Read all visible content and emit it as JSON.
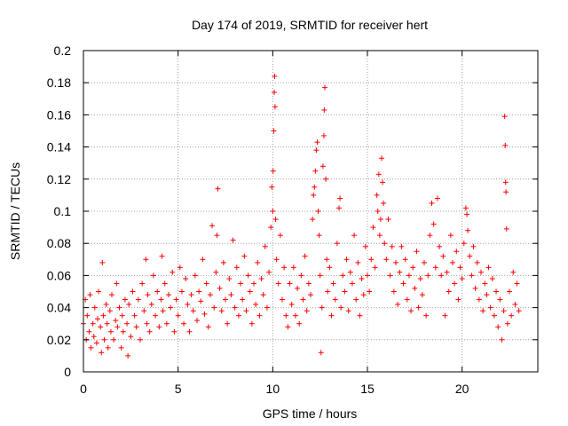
{
  "chart_data": {
    "type": "scatter",
    "title": "Day 174 of 2019, SRMTID for receiver hert",
    "xlabel": "GPS time / hours",
    "ylabel": "SRMTID / TECUs",
    "xlim": [
      0,
      24
    ],
    "ylim": [
      0,
      0.2
    ],
    "xticks": [
      0,
      5,
      10,
      15,
      20
    ],
    "xtick_labels": [
      "0",
      "5",
      "10",
      "15",
      "20"
    ],
    "yticks": [
      0,
      0.02,
      0.04,
      0.06,
      0.08,
      0.1,
      0.12,
      0.14,
      0.16,
      0.18,
      0.2
    ],
    "ytick_labels": [
      "0",
      "0.02",
      "0.04",
      "0.06",
      "0.08",
      "0.1",
      "0.12",
      "0.14",
      "0.16",
      "0.18",
      "0.2"
    ],
    "grid": true,
    "marker": "+",
    "color": "#ff0000",
    "series": [
      {
        "name": "SRMTID",
        "points": [
          [
            0.0,
            0.03
          ],
          [
            0.1,
            0.045
          ],
          [
            0.15,
            0.02
          ],
          [
            0.2,
            0.035
          ],
          [
            0.3,
            0.025
          ],
          [
            0.35,
            0.048
          ],
          [
            0.4,
            0.015
          ],
          [
            0.5,
            0.03
          ],
          [
            0.55,
            0.022
          ],
          [
            0.6,
            0.04
          ],
          [
            0.7,
            0.018
          ],
          [
            0.75,
            0.033
          ],
          [
            0.8,
            0.05
          ],
          [
            0.9,
            0.028
          ],
          [
            0.95,
            0.012
          ],
          [
            1.0,
            0.068
          ],
          [
            1.05,
            0.035
          ],
          [
            1.1,
            0.02
          ],
          [
            1.2,
            0.042
          ],
          [
            1.25,
            0.03
          ],
          [
            1.3,
            0.015
          ],
          [
            1.4,
            0.038
          ],
          [
            1.45,
            0.025
          ],
          [
            1.5,
            0.048
          ],
          [
            1.6,
            0.02
          ],
          [
            1.7,
            0.032
          ],
          [
            1.75,
            0.055
          ],
          [
            1.8,
            0.028
          ],
          [
            1.9,
            0.04
          ],
          [
            2.0,
            0.015
          ],
          [
            2.05,
            0.035
          ],
          [
            2.1,
            0.025
          ],
          [
            2.2,
            0.045
          ],
          [
            2.3,
            0.03
          ],
          [
            2.35,
            0.01
          ],
          [
            2.4,
            0.042
          ],
          [
            2.5,
            0.022
          ],
          [
            2.6,
            0.05
          ],
          [
            2.7,
            0.035
          ],
          [
            2.8,
            0.028
          ],
          [
            2.9,
            0.045
          ],
          [
            3.0,
            0.02
          ],
          [
            3.1,
            0.055
          ],
          [
            3.2,
            0.038
          ],
          [
            3.3,
            0.07
          ],
          [
            3.35,
            0.03
          ],
          [
            3.4,
            0.048
          ],
          [
            3.5,
            0.025
          ],
          [
            3.6,
            0.042
          ],
          [
            3.7,
            0.06
          ],
          [
            3.8,
            0.035
          ],
          [
            3.9,
            0.05
          ],
          [
            4.0,
            0.028
          ],
          [
            4.1,
            0.045
          ],
          [
            4.15,
            0.072
          ],
          [
            4.2,
            0.038
          ],
          [
            4.3,
            0.055
          ],
          [
            4.4,
            0.03
          ],
          [
            4.5,
            0.048
          ],
          [
            4.6,
            0.04
          ],
          [
            4.7,
            0.062
          ],
          [
            4.8,
            0.025
          ],
          [
            4.9,
            0.045
          ],
          [
            5.0,
            0.035
          ],
          [
            5.1,
            0.065
          ],
          [
            5.2,
            0.05
          ],
          [
            5.3,
            0.03
          ],
          [
            5.4,
            0.058
          ],
          [
            5.5,
            0.042
          ],
          [
            5.6,
            0.025
          ],
          [
            5.7,
            0.048
          ],
          [
            5.8,
            0.038
          ],
          [
            5.9,
            0.06
          ],
          [
            6.0,
            0.032
          ],
          [
            6.1,
            0.05
          ],
          [
            6.2,
            0.044
          ],
          [
            6.3,
            0.07
          ],
          [
            6.4,
            0.036
          ],
          [
            6.5,
            0.055
          ],
          [
            6.6,
            0.028
          ],
          [
            6.7,
            0.048
          ],
          [
            6.8,
            0.091
          ],
          [
            6.9,
            0.04
          ],
          [
            7.0,
            0.062
          ],
          [
            7.05,
            0.085
          ],
          [
            7.1,
            0.114
          ],
          [
            7.2,
            0.052
          ],
          [
            7.3,
            0.038
          ],
          [
            7.4,
            0.068
          ],
          [
            7.5,
            0.045
          ],
          [
            7.6,
            0.03
          ],
          [
            7.7,
            0.058
          ],
          [
            7.8,
            0.048
          ],
          [
            7.9,
            0.082
          ],
          [
            8.0,
            0.04
          ],
          [
            8.1,
            0.065
          ],
          [
            8.2,
            0.035
          ],
          [
            8.3,
            0.055
          ],
          [
            8.4,
            0.045
          ],
          [
            8.5,
            0.072
          ],
          [
            8.6,
            0.038
          ],
          [
            8.7,
            0.06
          ],
          [
            8.8,
            0.05
          ],
          [
            8.9,
            0.03
          ],
          [
            9.0,
            0.055
          ],
          [
            9.1,
            0.042
          ],
          [
            9.2,
            0.068
          ],
          [
            9.3,
            0.035
          ],
          [
            9.4,
            0.058
          ],
          [
            9.5,
            0.048
          ],
          [
            9.6,
            0.078
          ],
          [
            9.7,
            0.04
          ],
          [
            9.8,
            0.062
          ],
          [
            9.9,
            0.09
          ],
          [
            9.95,
            0.115
          ],
          [
            10.0,
            0.1
          ],
          [
            10.02,
            0.125
          ],
          [
            10.05,
            0.15
          ],
          [
            10.08,
            0.174
          ],
          [
            10.1,
            0.184
          ],
          [
            10.12,
            0.165
          ],
          [
            10.15,
            0.095
          ],
          [
            10.2,
            0.07
          ],
          [
            10.3,
            0.055
          ],
          [
            10.4,
            0.085
          ],
          [
            10.5,
            0.045
          ],
          [
            10.6,
            0.065
          ],
          [
            10.7,
            0.035
          ],
          [
            10.8,
            0.028
          ],
          [
            10.9,
            0.055
          ],
          [
            11.0,
            0.042
          ],
          [
            11.1,
            0.065
          ],
          [
            11.2,
            0.035
          ],
          [
            11.3,
            0.052
          ],
          [
            11.4,
            0.03
          ],
          [
            11.5,
            0.06
          ],
          [
            11.6,
            0.045
          ],
          [
            11.7,
            0.072
          ],
          [
            11.8,
            0.038
          ],
          [
            11.9,
            0.055
          ],
          [
            12.0,
            0.048
          ],
          [
            12.1,
            0.095
          ],
          [
            12.15,
            0.11
          ],
          [
            12.2,
            0.115
          ],
          [
            12.25,
            0.125
          ],
          [
            12.3,
            0.138
          ],
          [
            12.35,
            0.143
          ],
          [
            12.4,
            0.1
          ],
          [
            12.45,
            0.085
          ],
          [
            12.5,
            0.06
          ],
          [
            12.55,
            0.012
          ],
          [
            12.6,
            0.04
          ],
          [
            12.65,
            0.128
          ],
          [
            12.7,
            0.147
          ],
          [
            12.72,
            0.163
          ],
          [
            12.75,
            0.177
          ],
          [
            12.8,
            0.12
          ],
          [
            12.85,
            0.07
          ],
          [
            12.9,
            0.05
          ],
          [
            13.0,
            0.065
          ],
          [
            13.1,
            0.035
          ],
          [
            13.2,
            0.055
          ],
          [
            13.3,
            0.045
          ],
          [
            13.4,
            0.08
          ],
          [
            13.5,
            0.102
          ],
          [
            13.55,
            0.108
          ],
          [
            13.6,
            0.04
          ],
          [
            13.7,
            0.06
          ],
          [
            13.8,
            0.05
          ],
          [
            13.9,
            0.07
          ],
          [
            14.0,
            0.038
          ],
          [
            14.1,
            0.062
          ],
          [
            14.2,
            0.055
          ],
          [
            14.3,
            0.085
          ],
          [
            14.4,
            0.045
          ],
          [
            14.5,
            0.068
          ],
          [
            14.6,
            0.035
          ],
          [
            14.7,
            0.058
          ],
          [
            14.8,
            0.048
          ],
          [
            14.9,
            0.078
          ],
          [
            15.0,
            0.06
          ],
          [
            15.1,
            0.05
          ],
          [
            15.2,
            0.07
          ],
          [
            15.3,
            0.09
          ],
          [
            15.4,
            0.065
          ],
          [
            15.5,
            0.11
          ],
          [
            15.55,
            0.1
          ],
          [
            15.6,
            0.123
          ],
          [
            15.65,
            0.085
          ],
          [
            15.7,
            0.095
          ],
          [
            15.75,
            0.133
          ],
          [
            15.8,
            0.118
          ],
          [
            15.85,
            0.105
          ],
          [
            15.9,
            0.08
          ],
          [
            16.0,
            0.07
          ],
          [
            16.1,
            0.095
          ],
          [
            16.2,
            0.06
          ],
          [
            16.3,
            0.078
          ],
          [
            16.4,
            0.05
          ],
          [
            16.5,
            0.068
          ],
          [
            16.6,
            0.042
          ],
          [
            16.7,
            0.062
          ],
          [
            16.8,
            0.078
          ],
          [
            16.9,
            0.055
          ],
          [
            17.0,
            0.07
          ],
          [
            17.1,
            0.045
          ],
          [
            17.2,
            0.06
          ],
          [
            17.3,
            0.038
          ],
          [
            17.4,
            0.065
          ],
          [
            17.5,
            0.052
          ],
          [
            17.6,
            0.075
          ],
          [
            17.7,
            0.04
          ],
          [
            17.8,
            0.058
          ],
          [
            17.9,
            0.048
          ],
          [
            18.0,
            0.068
          ],
          [
            18.1,
            0.035
          ],
          [
            18.2,
            0.06
          ],
          [
            18.3,
            0.085
          ],
          [
            18.4,
            0.105
          ],
          [
            18.5,
            0.092
          ],
          [
            18.6,
            0.065
          ],
          [
            18.7,
            0.108
          ],
          [
            18.8,
            0.078
          ],
          [
            18.9,
            0.06
          ],
          [
            19.0,
            0.072
          ],
          [
            19.1,
            0.035
          ],
          [
            19.2,
            0.062
          ],
          [
            19.3,
            0.05
          ],
          [
            19.4,
            0.085
          ],
          [
            19.5,
            0.068
          ],
          [
            19.6,
            0.055
          ],
          [
            19.7,
            0.075
          ],
          [
            19.8,
            0.045
          ],
          [
            19.9,
            0.065
          ],
          [
            20.0,
            0.058
          ],
          [
            20.1,
            0.08
          ],
          [
            20.2,
            0.102
          ],
          [
            20.25,
            0.098
          ],
          [
            20.3,
            0.088
          ],
          [
            20.4,
            0.072
          ],
          [
            20.5,
            0.06
          ],
          [
            20.6,
            0.078
          ],
          [
            20.7,
            0.052
          ],
          [
            20.8,
            0.068
          ],
          [
            20.9,
            0.045
          ],
          [
            21.0,
            0.062
          ],
          [
            21.1,
            0.038
          ],
          [
            21.2,
            0.055
          ],
          [
            21.3,
            0.048
          ],
          [
            21.4,
            0.065
          ],
          [
            21.5,
            0.04
          ],
          [
            21.6,
            0.058
          ],
          [
            21.7,
            0.035
          ],
          [
            21.8,
            0.05
          ],
          [
            21.9,
            0.028
          ],
          [
            22.0,
            0.045
          ],
          [
            22.1,
            0.02
          ],
          [
            22.2,
            0.038
          ],
          [
            22.25,
            0.159
          ],
          [
            22.28,
            0.141
          ],
          [
            22.3,
            0.118
          ],
          [
            22.32,
            0.112
          ],
          [
            22.35,
            0.089
          ],
          [
            22.4,
            0.03
          ],
          [
            22.5,
            0.05
          ],
          [
            22.6,
            0.035
          ],
          [
            22.7,
            0.062
          ],
          [
            22.8,
            0.042
          ],
          [
            22.9,
            0.055
          ],
          [
            23.0,
            0.038
          ]
        ]
      }
    ]
  }
}
